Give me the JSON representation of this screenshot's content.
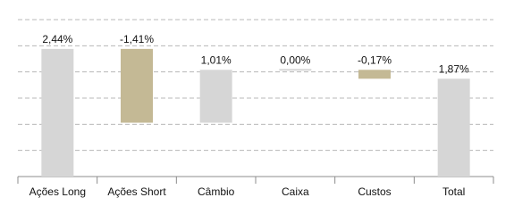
{
  "chart_data": {
    "type": "waterfall",
    "categories": [
      "Ações Long",
      "Ações Short",
      "Câmbio",
      "Caixa",
      "Custos",
      "Total"
    ],
    "values": [
      2.44,
      -1.41,
      1.01,
      0.0,
      -0.17,
      1.87
    ],
    "value_labels": [
      "2,44%",
      "-1,41%",
      "1,01%",
      "0,00%",
      "-0,17%",
      "1,87%"
    ],
    "is_total": [
      false,
      false,
      false,
      false,
      false,
      true
    ],
    "color_increase": "#d6d6d6",
    "color_decrease": "#c4b995",
    "color_total": "#d6d6d6",
    "ylim": [
      0,
      3
    ],
    "yticks": [
      0,
      0.5,
      1,
      1.5,
      2,
      2.5,
      3
    ],
    "grid": true
  }
}
